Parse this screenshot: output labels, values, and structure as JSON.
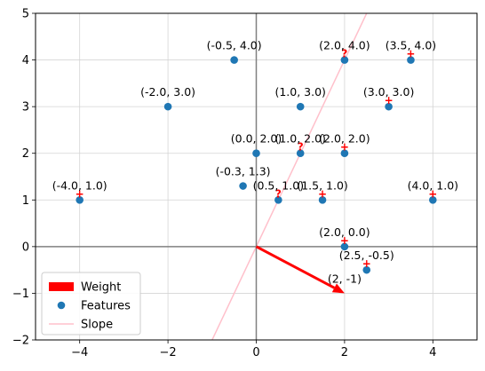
{
  "chart_data": {
    "type": "scatter",
    "xlim": [
      -5,
      5
    ],
    "ylim": [
      -2,
      5
    ],
    "x_ticks": [
      -4,
      -2,
      0,
      2,
      4
    ],
    "y_ticks": [
      -2,
      -1,
      0,
      1,
      2,
      3,
      4,
      5
    ],
    "x_tick_labels": [
      "−4",
      "−2",
      "0",
      "2",
      "4"
    ],
    "y_tick_labels": [
      "−2",
      "−1",
      "0",
      "1",
      "2",
      "3",
      "4",
      "5"
    ],
    "grid": true,
    "legend_position": "lower-left",
    "colors": {
      "features": "#1f77b4",
      "weight": "#ff0000",
      "slope": "#ffc0cb",
      "axis": "#808080"
    },
    "series": [
      {
        "name": "Features",
        "points": [
          {
            "x": -4.0,
            "y": 1.0,
            "label": "(-4.0, 1.0)",
            "marker": "+"
          },
          {
            "x": -2.0,
            "y": 3.0,
            "label": "(-2.0, 3.0)",
            "marker": ""
          },
          {
            "x": -0.5,
            "y": 4.0,
            "label": "(-0.5, 4.0)",
            "marker": ""
          },
          {
            "x": -0.3,
            "y": 1.3,
            "label": "(-0.3, 1.3)",
            "marker": ""
          },
          {
            "x": 0.0,
            "y": 2.0,
            "label": "(0.0, 2.0)",
            "marker": ""
          },
          {
            "x": 0.5,
            "y": 1.0,
            "label": "(0.5, 1.0)",
            "marker": "?"
          },
          {
            "x": 1.0,
            "y": 2.0,
            "label": "(1.0, 2.0)",
            "marker": "?"
          },
          {
            "x": 1.0,
            "y": 3.0,
            "label": "(1.0, 3.0)",
            "marker": ""
          },
          {
            "x": 1.5,
            "y": 1.0,
            "label": "(1.5, 1.0)",
            "marker": "+"
          },
          {
            "x": 2.0,
            "y": 2.0,
            "label": "(2.0, 2.0)",
            "marker": "+"
          },
          {
            "x": 2.0,
            "y": 4.0,
            "label": "(2.0, 4.0)",
            "marker": "?"
          },
          {
            "x": 2.0,
            "y": 0.0,
            "label": "(2.0, 0.0)",
            "marker": "+"
          },
          {
            "x": 2.5,
            "y": -0.5,
            "label": "(2.5, -0.5)",
            "marker": "+"
          },
          {
            "x": 3.0,
            "y": 3.0,
            "label": "(3.0, 3.0)",
            "marker": "+"
          },
          {
            "x": 3.5,
            "y": 4.0,
            "label": "(3.5, 4.0)",
            "marker": "+"
          },
          {
            "x": 4.0,
            "y": 1.0,
            "label": "(4.0, 1.0)",
            "marker": "+"
          }
        ]
      },
      {
        "name": "Weight",
        "vector": {
          "x0": 0,
          "y0": 0,
          "x1": 2,
          "y1": -1,
          "label": "(2, -1)"
        }
      },
      {
        "name": "Slope",
        "line": {
          "slope": 2,
          "intercept": 0
        }
      }
    ],
    "legend": [
      "Weight",
      "Features",
      "Slope"
    ]
  }
}
